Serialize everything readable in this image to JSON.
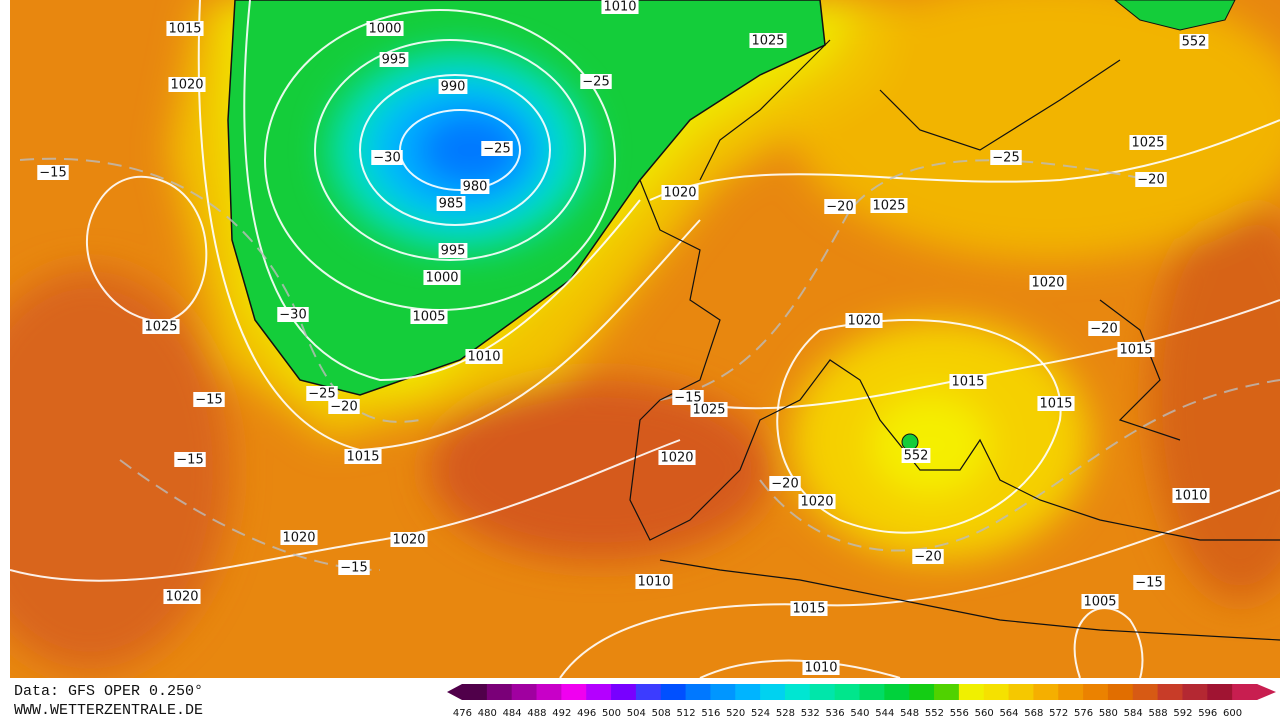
{
  "map": {
    "labels": [
      "1015",
      "1020",
      "−15",
      "1025",
      "−15",
      "−15",
      "1020",
      "−15",
      "1020",
      "1000",
      "995",
      "990",
      "−30",
      "−25",
      "980",
      "985",
      "995",
      "1000",
      "1005",
      "−30",
      "1010",
      "−25",
      "−20",
      "1015",
      "1020",
      "1010",
      "−25",
      "1025",
      "1020",
      "−20",
      "1025",
      "−25",
      "1025",
      "−20",
      "552",
      "1020",
      "−20",
      "1015",
      "1020",
      "1015",
      "1015",
      "−15",
      "1025",
      "1020",
      "552",
      "−20",
      "1020",
      "1010",
      "−20",
      "1010",
      "1015",
      "−15",
      "1005",
      "1010"
    ]
  },
  "footer": {
    "source": "Data: GFS OPER 0.250°",
    "site": "WWW.WETTERZENTRALE.DE"
  },
  "legend": {
    "labels": [
      476,
      480,
      484,
      488,
      492,
      496,
      500,
      504,
      508,
      512,
      516,
      520,
      524,
      528,
      532,
      536,
      540,
      544,
      548,
      552,
      556,
      560,
      564,
      568,
      572,
      576,
      580,
      584,
      588,
      592,
      596,
      600
    ],
    "colors": [
      "#50004a",
      "#7a0078",
      "#a000a0",
      "#c800c8",
      "#f000f0",
      "#b400ff",
      "#7800ff",
      "#3c3cff",
      "#0050ff",
      "#0078ff",
      "#0096ff",
      "#00b4ff",
      "#00d2f0",
      "#00e6d2",
      "#00e6aa",
      "#00e68c",
      "#00dc64",
      "#00d23c",
      "#14cd14",
      "#50d200",
      "#f0f000",
      "#f5e100",
      "#f5c800",
      "#f5af00",
      "#f09600",
      "#eb8200",
      "#e16e00",
      "#d75a14",
      "#c83c28",
      "#b42832",
      "#a01432",
      "#c81e50"
    ]
  }
}
